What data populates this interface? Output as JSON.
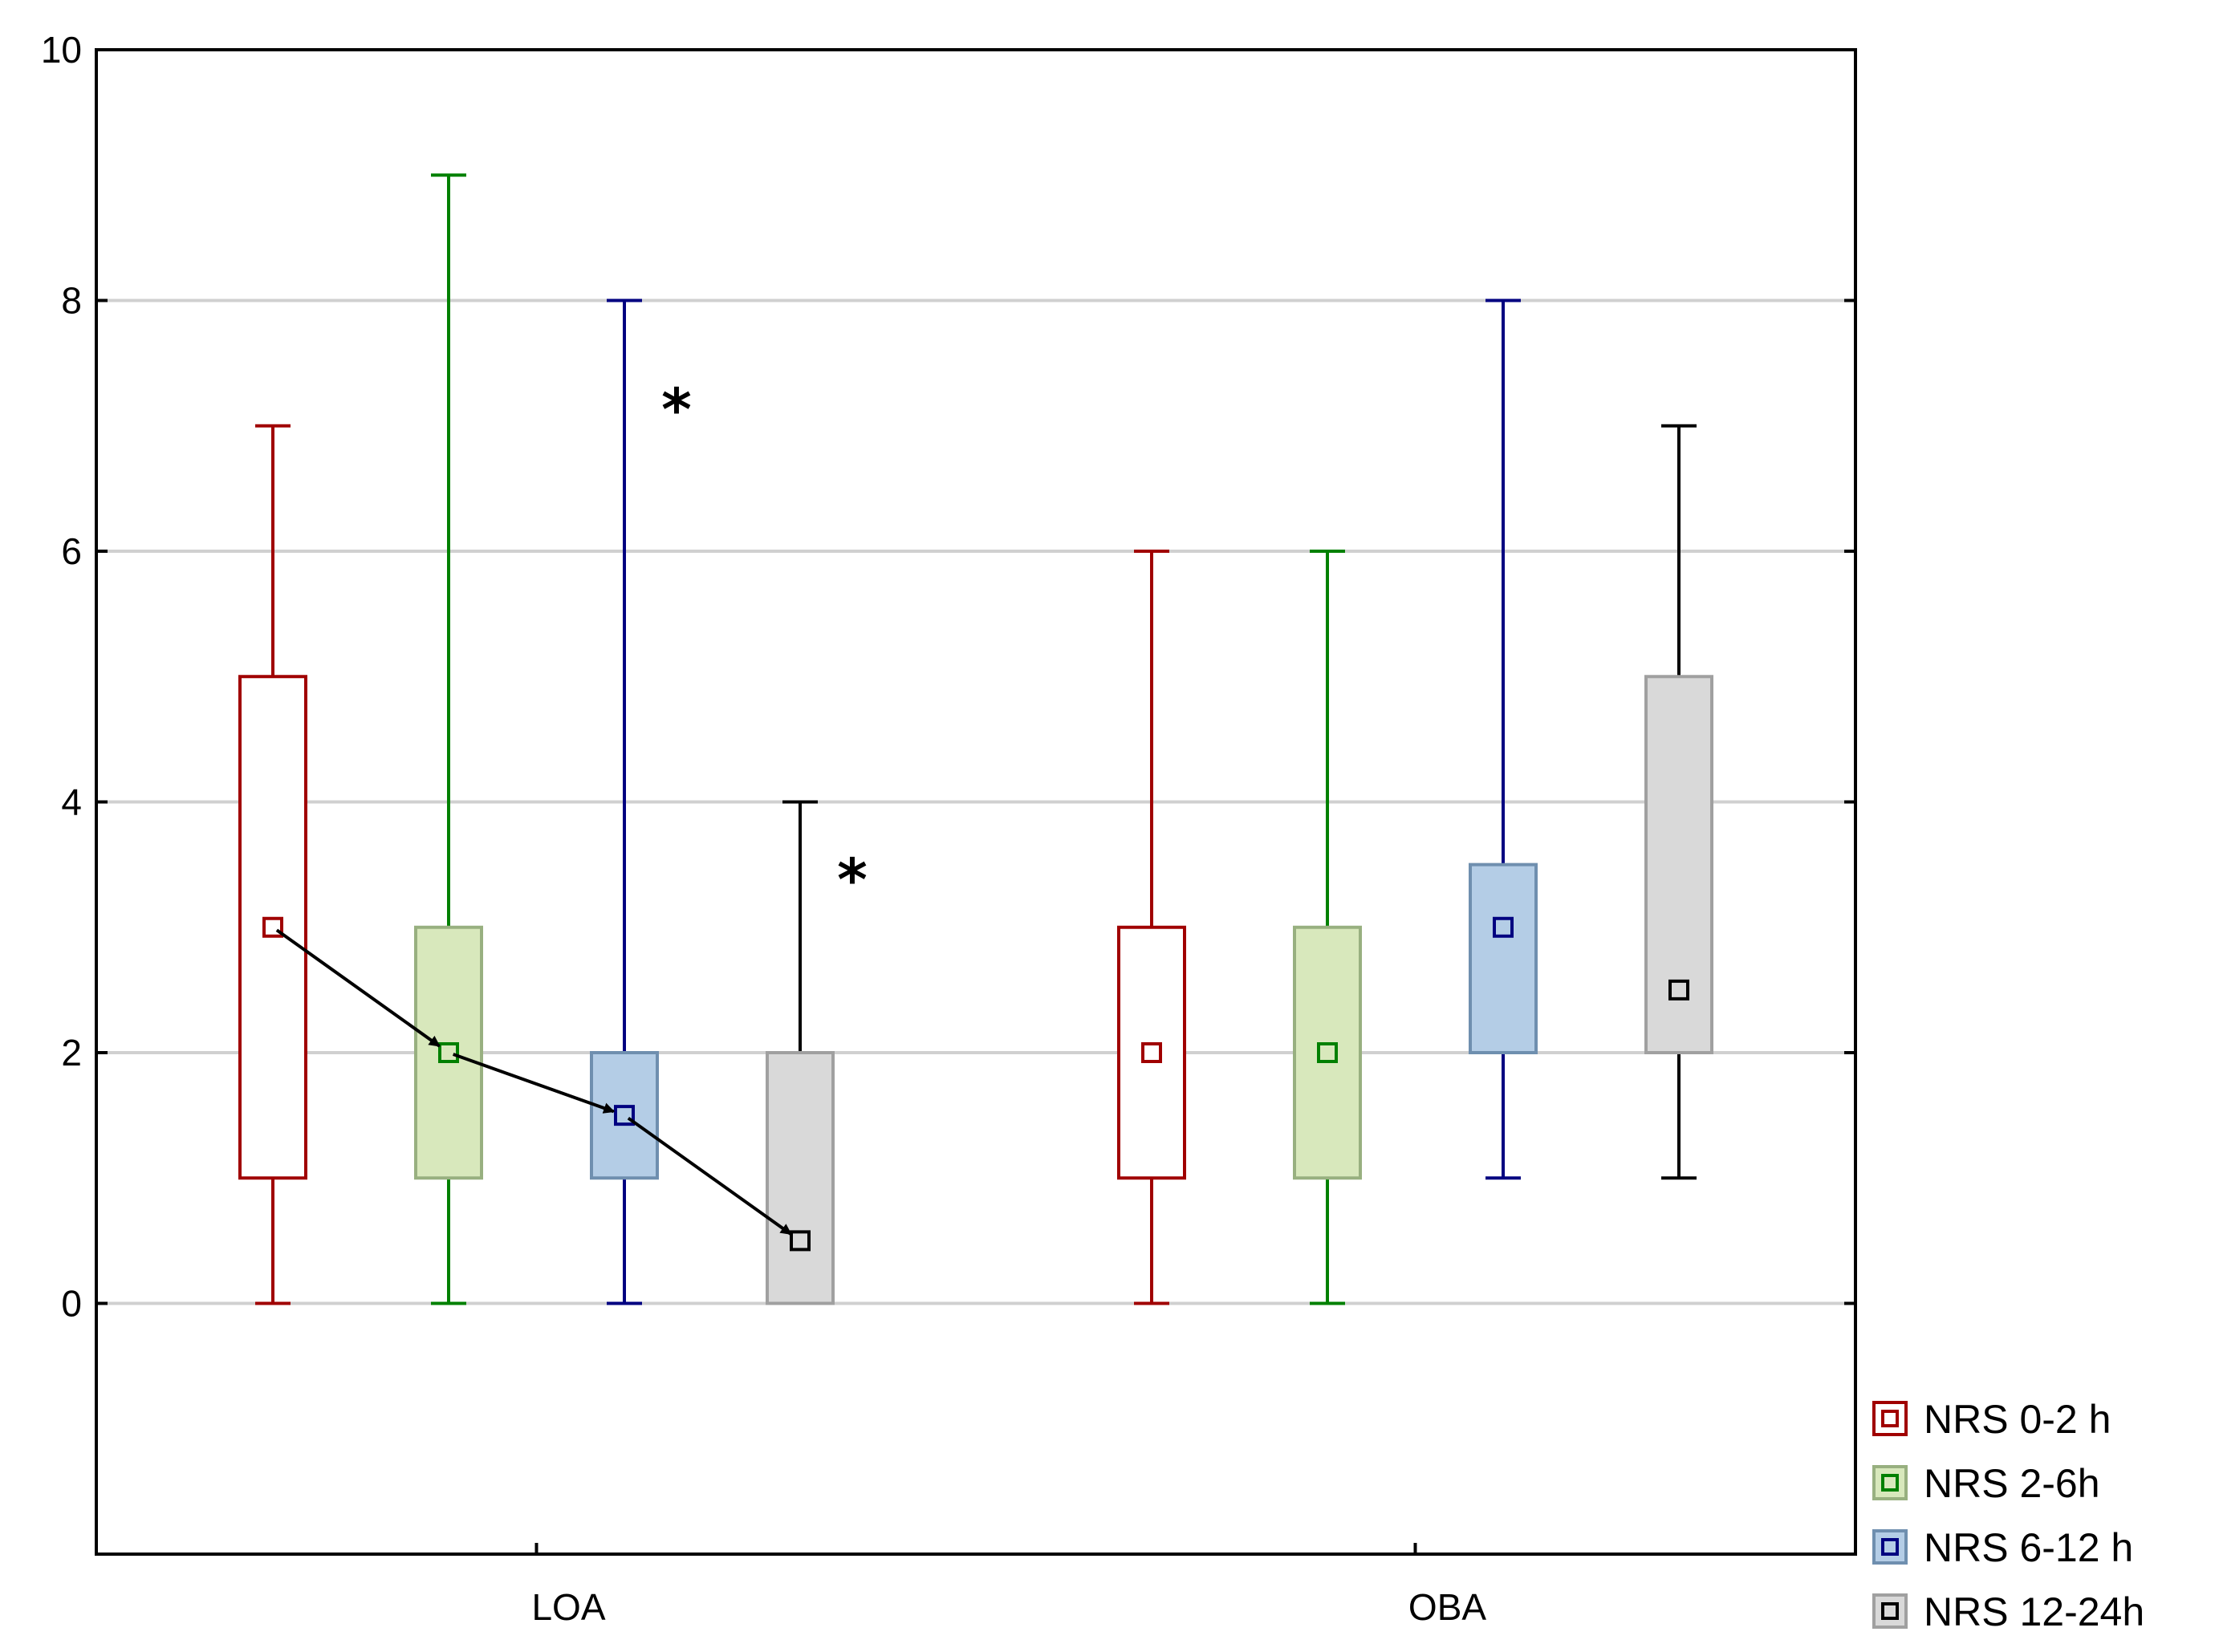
{
  "chart_data": {
    "type": "boxplot",
    "title": "",
    "xlabel": "",
    "ylabel": "",
    "ylim": [
      -2,
      10
    ],
    "yticks": [
      0,
      2,
      4,
      6,
      8,
      10
    ],
    "yticklabels": [
      "0",
      "2",
      "4",
      "6",
      "8",
      "10"
    ],
    "grid": true,
    "categories": [
      "LOA",
      "OBA"
    ],
    "legend_position": "right-bottom",
    "series": [
      {
        "name": "NRS 0-2 h",
        "stroke": "#a00000",
        "fill": "#ffffff",
        "values": [
          {
            "min": 0,
            "q1": 1,
            "median": 3,
            "q3": 5,
            "max": 7
          },
          {
            "min": 0,
            "q1": 1,
            "median": 2,
            "q3": 3,
            "max": 6
          }
        ]
      },
      {
        "name": "NRS 2-6h",
        "stroke": "#008000",
        "fill": "#d8e8bc",
        "values": [
          {
            "min": 0,
            "q1": 1,
            "median": 2,
            "q3": 3,
            "max": 9
          },
          {
            "min": 0,
            "q1": 1,
            "median": 2,
            "q3": 3,
            "max": 6
          }
        ]
      },
      {
        "name": "NRS 6-12 h",
        "stroke": "#000080",
        "fill": "#b4cde6",
        "values": [
          {
            "min": 0,
            "q1": 1,
            "median": 1.5,
            "q3": 2,
            "max": 8
          },
          {
            "min": 1,
            "q1": 2,
            "median": 3,
            "q3": 3.5,
            "max": 8
          }
        ]
      },
      {
        "name": "NRS 12-24h",
        "stroke": "#000000",
        "fill": "#d9d9d9",
        "values": [
          {
            "min": 0,
            "q1": 0,
            "median": 0.5,
            "q3": 2,
            "max": 4
          },
          {
            "min": 1,
            "q1": 2,
            "median": 2.5,
            "q3": 5,
            "max": 7
          }
        ]
      }
    ],
    "annotations": {
      "trend_arrows_category": "LOA",
      "significance_marks": [
        {
          "text": "*",
          "category": "LOA",
          "series_index": 2,
          "y": 7.2
        },
        {
          "text": "*",
          "category": "LOA",
          "series_index": 3,
          "y": 3.45
        }
      ]
    }
  }
}
